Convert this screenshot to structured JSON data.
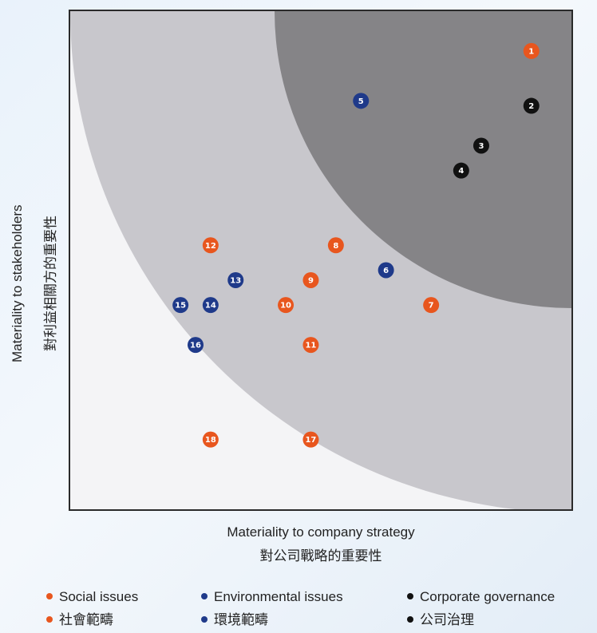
{
  "chart_data": {
    "type": "scatter",
    "xlabel": "Materiality to company strategy",
    "xlabel_zh": "對公司戰略的重要性",
    "ylabel": "Materiality to stakeholders",
    "ylabel_zh": "對利益相關方的重要性",
    "xlim": [
      0,
      100
    ],
    "ylim": [
      0,
      100
    ],
    "grid": false,
    "legend_position": "bottom",
    "series": [
      {
        "name": "Social issues",
        "name_zh": "社會範疇",
        "color": "#e8561e",
        "points": [
          {
            "label": "1",
            "x": 92,
            "y": 92
          },
          {
            "label": "7",
            "x": 72,
            "y": 41
          },
          {
            "label": "8",
            "x": 53,
            "y": 53
          },
          {
            "label": "9",
            "x": 48,
            "y": 46
          },
          {
            "label": "10",
            "x": 43,
            "y": 41
          },
          {
            "label": "11",
            "x": 48,
            "y": 33
          },
          {
            "label": "12",
            "x": 28,
            "y": 53
          },
          {
            "label": "17",
            "x": 48,
            "y": 14
          },
          {
            "label": "18",
            "x": 28,
            "y": 14
          }
        ]
      },
      {
        "name": "Environmental issues",
        "name_zh": "環境範疇",
        "color": "#1f3a8a",
        "points": [
          {
            "label": "5",
            "x": 58,
            "y": 82
          },
          {
            "label": "6",
            "x": 63,
            "y": 48
          },
          {
            "label": "13",
            "x": 33,
            "y": 46
          },
          {
            "label": "14",
            "x": 28,
            "y": 41
          },
          {
            "label": "15",
            "x": 22,
            "y": 41
          },
          {
            "label": "16",
            "x": 25,
            "y": 33
          }
        ]
      },
      {
        "name": "Corporate governance",
        "name_zh": "公司治理",
        "color": "#111111",
        "points": [
          {
            "label": "2",
            "x": 92,
            "y": 81
          },
          {
            "label": "3",
            "x": 82,
            "y": 73
          },
          {
            "label": "4",
            "x": 78,
            "y": 68
          }
        ]
      }
    ],
    "regions": [
      {
        "name": "outer-zone",
        "color": "#c8c7cc"
      },
      {
        "name": "inner-zone",
        "color": "#858487"
      }
    ]
  },
  "plot_background": "#f4f4f6"
}
